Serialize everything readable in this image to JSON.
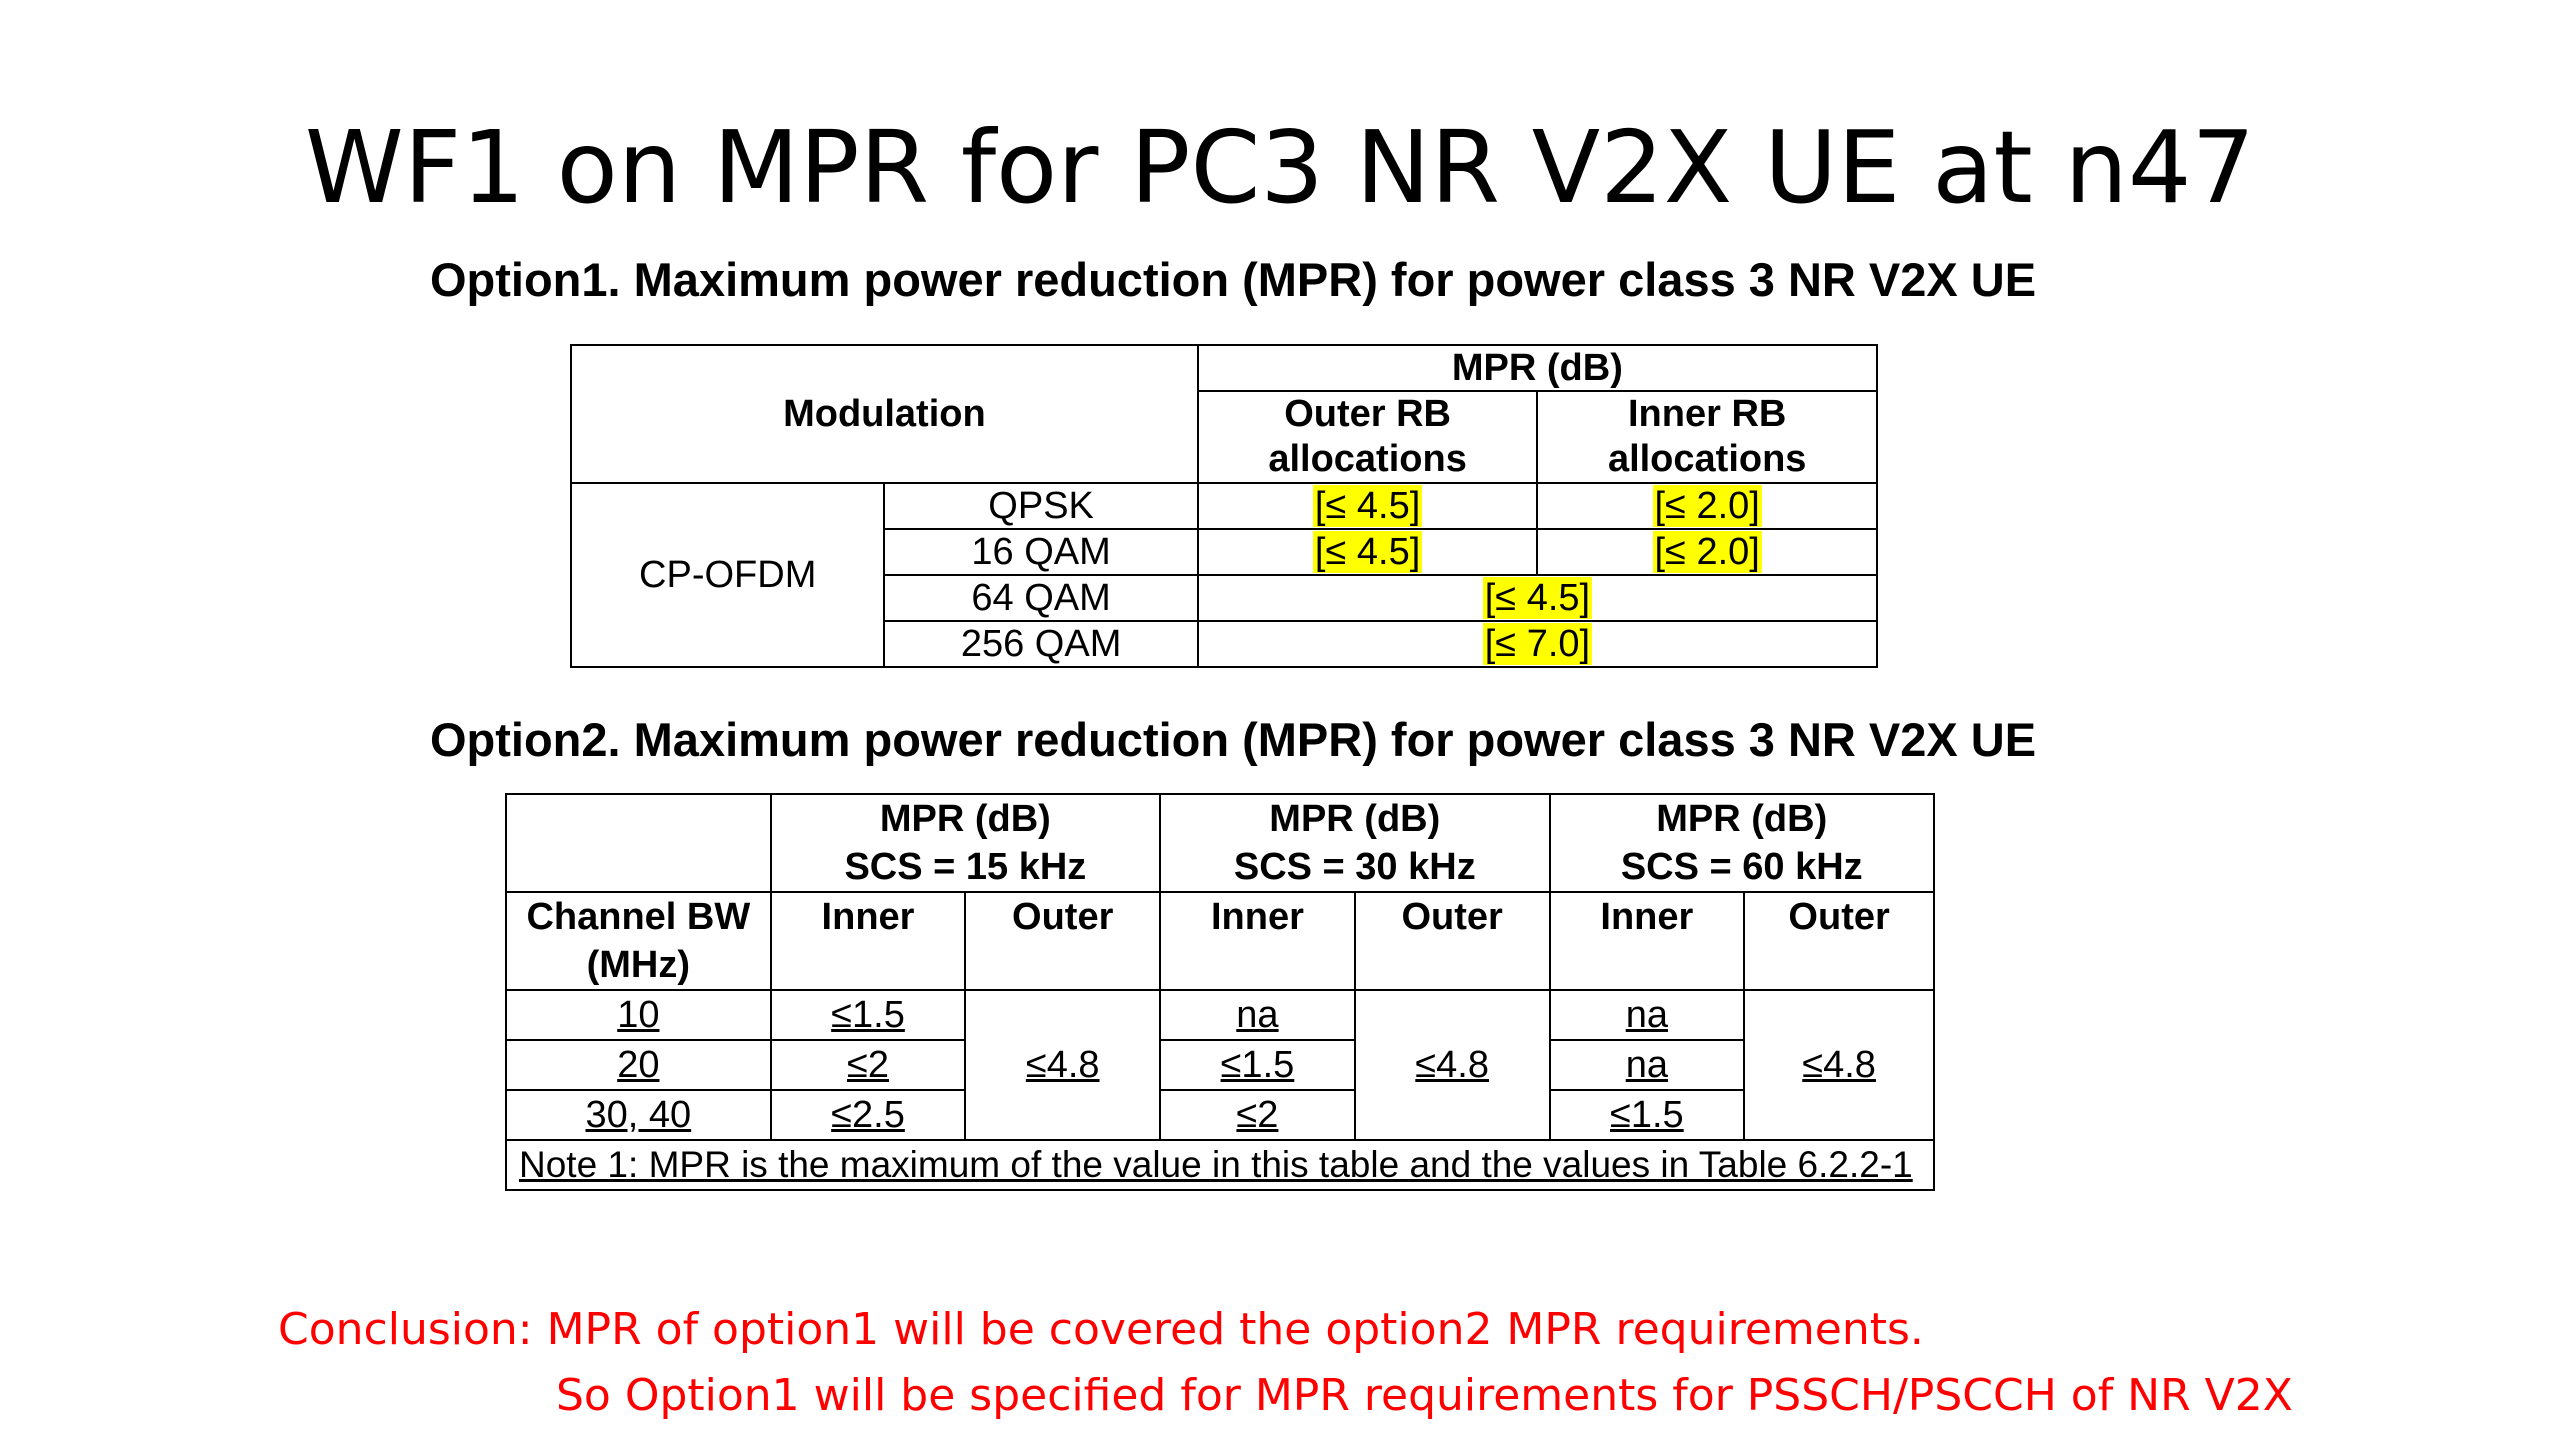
{
  "title": "WF1 on MPR for PC3 NR V2X UE at n47",
  "option1": {
    "heading": "Option1. Maximum power reduction (MPR) for power class 3 NR V2X UE",
    "header": {
      "modulation": "Modulation",
      "mpr_db": "MPR (dB)",
      "outer_rb_line1": "Outer RB",
      "outer_rb_line2": "allocations",
      "inner_rb_line1": "Inner RB",
      "inner_rb_line2": "allocations"
    },
    "waveform": "CP-OFDM",
    "rows": [
      {
        "modulation": "QPSK",
        "outer": "[≤ 4.5]",
        "inner": "[≤ 2.0]"
      },
      {
        "modulation": "16 QAM",
        "outer": "[≤ 4.5]",
        "inner": "[≤ 2.0]"
      },
      {
        "modulation": "64 QAM",
        "combined": "[≤ 4.5]"
      },
      {
        "modulation": "256 QAM",
        "combined": "[≤ 7.0]"
      }
    ],
    "highlight_color": "#ffff00"
  },
  "option2": {
    "heading": "Option2. Maximum power reduction (MPR) for power class 3 NR V2X UE",
    "header": {
      "channel_bw_line1": "Channel BW",
      "channel_bw_line2": "(MHz)",
      "groups": [
        {
          "line1": "MPR (dB)",
          "line2": "SCS = 15 kHz"
        },
        {
          "line1": "MPR (dB)",
          "line2": "SCS = 30 kHz"
        },
        {
          "line1": "MPR (dB)",
          "line2": "SCS = 60 kHz"
        }
      ],
      "inner": "Inner",
      "outer": "Outer"
    },
    "rows": [
      {
        "bw": "10",
        "inner15": "≤1.5",
        "inner30": "na",
        "inner60": "na"
      },
      {
        "bw": "20",
        "inner15": "≤2",
        "inner30": "≤1.5",
        "inner60": "na"
      },
      {
        "bw": "30, 40",
        "inner15": "≤2.5",
        "inner30": "≤2",
        "inner60": "≤1.5"
      }
    ],
    "outer15": "≤4.8",
    "outer30": "≤4.8",
    "outer60": "≤4.8",
    "note": "Note 1: MPR is the maximum of the value in this table and the values in Table 6.2.2-1"
  },
  "conclusion": {
    "line1": "Conclusion: MPR of option1 will be covered the option2 MPR requirements.",
    "line2": "So Option1 will be specified for MPR requirements for PSSCH/PSCCH of NR V2X",
    "color": "#ff0000"
  }
}
